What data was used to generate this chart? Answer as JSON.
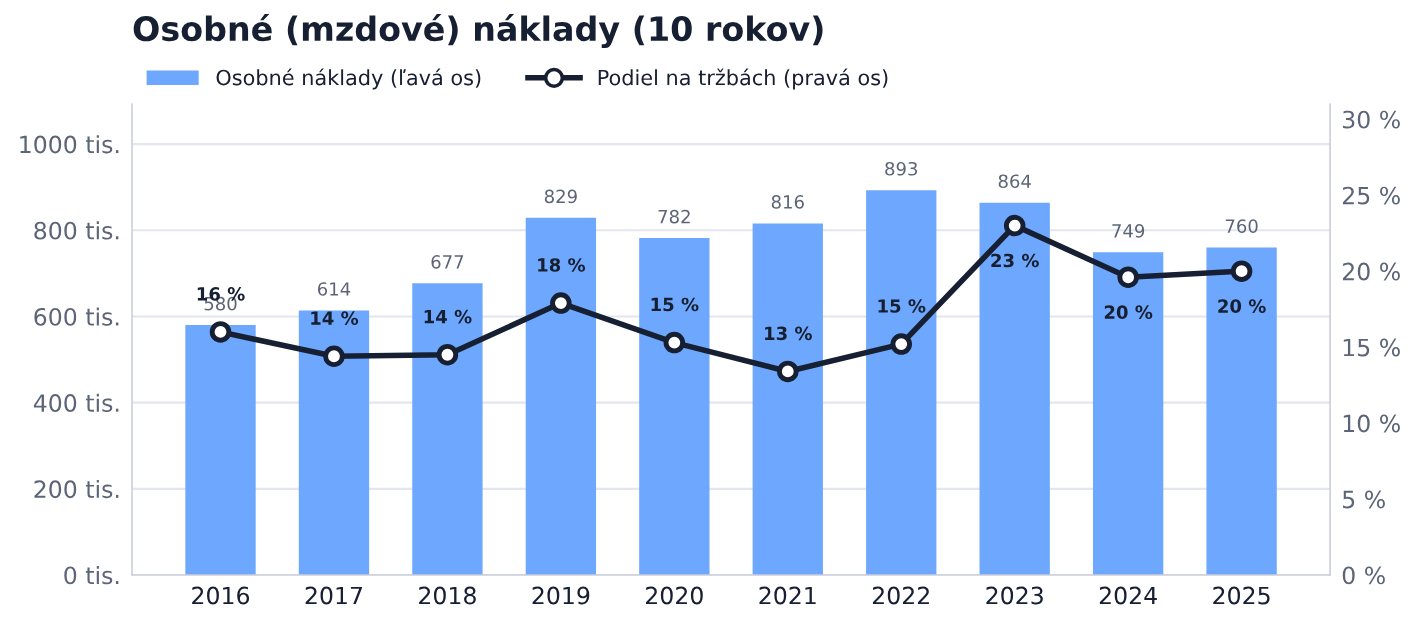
{
  "chart_data": {
    "type": "bar",
    "title": "Osobné (mzdové) náklady (10 rokov)",
    "categories": [
      "2016",
      "2017",
      "2018",
      "2019",
      "2020",
      "2021",
      "2022",
      "2023",
      "2024",
      "2025"
    ],
    "series": [
      {
        "name": "Osobné náklady (ľavá os)",
        "color": "#6ea8fe",
        "values": [
          580,
          614,
          677,
          829,
          782,
          816,
          893,
          864,
          749,
          760
        ],
        "data_labels": true
      },
      {
        "name": "Podiel na tržbách (pravá os)",
        "type": "line",
        "axis": "y2",
        "color": "#172033",
        "marker": "circle",
        "line_style": "solid",
        "values": [
          16.0,
          14.4,
          14.5,
          17.9,
          15.3,
          13.4,
          15.2,
          23.0,
          19.6,
          20.0
        ],
        "value_labels": [
          "16 %",
          "14 %",
          "14 %",
          "18 %",
          "15 %",
          "13 %",
          "15 %",
          "23 %",
          "20 %",
          "20 %"
        ]
      }
    ],
    "ylim": [
      0,
      1093
    ],
    "yticks": [
      {
        "value": 0,
        "label": "0 tis."
      },
      {
        "value": 200,
        "label": "200 tis."
      },
      {
        "value": 400,
        "label": "400 tis."
      },
      {
        "value": 600,
        "label": "600 tis."
      },
      {
        "value": 800,
        "label": "800 tis."
      },
      {
        "value": 1000,
        "label": "1000 tis."
      }
    ],
    "y2lim": [
      0,
      31
    ],
    "y2ticks": [
      {
        "value": 0,
        "label": "0 %"
      },
      {
        "value": 5,
        "label": "5 %"
      },
      {
        "value": 10,
        "label": "10 %"
      },
      {
        "value": 15,
        "label": "15 %"
      },
      {
        "value": 20,
        "label": "20 %"
      },
      {
        "value": 25,
        "label": "25 %"
      },
      {
        "value": 30,
        "label": "30 %"
      }
    ],
    "grid": "y",
    "legend": "top left"
  }
}
